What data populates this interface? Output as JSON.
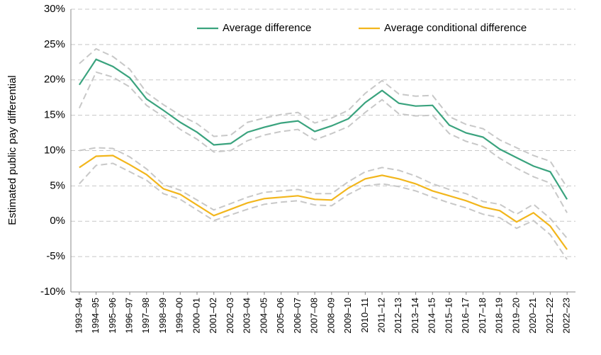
{
  "chart_data": {
    "type": "line",
    "y_label": "Estimated public pay differential",
    "categories": [
      "1993–94",
      "1994–95",
      "1995–96",
      "1996–97",
      "1997–98",
      "1998–99",
      "1999–00",
      "2000–01",
      "2001–02",
      "2002–03",
      "2003–04",
      "2004–05",
      "2005–06",
      "2006–07",
      "2007–08",
      "2008–09",
      "2009–10",
      "2010–11",
      "2011–12",
      "2012–13",
      "2013–14",
      "2014–15",
      "2015–16",
      "2016–17",
      "2017–18",
      "2018–19",
      "2019–20",
      "2020–21",
      "2021–22",
      "2022–23"
    ],
    "series": [
      {
        "name": "Average difference",
        "color": "#3aa37e",
        "values": [
          19.3,
          22.9,
          21.9,
          20.3,
          17.3,
          15.7,
          14.0,
          12.6,
          10.8,
          11.0,
          12.6,
          13.3,
          13.9,
          14.2,
          12.7,
          13.5,
          14.5,
          16.8,
          18.5,
          16.7,
          16.3,
          16.4,
          13.6,
          12.5,
          11.9,
          10.2,
          9.0,
          7.8,
          7.0,
          3.1
        ],
        "upper": [
          22.3,
          24.4,
          23.3,
          21.5,
          18.2,
          16.5,
          15.0,
          13.8,
          12.0,
          12.2,
          14.0,
          14.6,
          15.1,
          15.4,
          13.9,
          14.6,
          15.7,
          18.1,
          19.9,
          18.0,
          17.7,
          17.8,
          14.8,
          13.7,
          13.1,
          11.5,
          10.4,
          9.3,
          8.5,
          4.8
        ],
        "lower": [
          16.0,
          21.1,
          20.4,
          19.0,
          16.4,
          14.8,
          13.0,
          11.6,
          9.8,
          10.0,
          11.4,
          12.2,
          12.7,
          13.0,
          11.5,
          12.4,
          13.4,
          15.4,
          17.2,
          15.2,
          14.9,
          15.0,
          12.4,
          11.3,
          10.6,
          8.9,
          7.5,
          6.3,
          5.4,
          1.2
        ]
      },
      {
        "name": "Average conditional difference",
        "color": "#f2b61c",
        "values": [
          7.6,
          9.2,
          9.3,
          8.0,
          6.6,
          4.6,
          3.8,
          2.3,
          0.8,
          1.7,
          2.6,
          3.2,
          3.4,
          3.6,
          3.1,
          3.0,
          4.7,
          6.0,
          6.5,
          6.0,
          5.3,
          4.3,
          3.6,
          2.9,
          2.0,
          1.5,
          -0.1,
          1.2,
          -0.7,
          -4.0
        ],
        "upper": [
          10.0,
          10.4,
          10.3,
          9.1,
          7.4,
          5.2,
          4.4,
          3.0,
          1.6,
          2.5,
          3.4,
          4.1,
          4.3,
          4.5,
          3.9,
          3.9,
          5.6,
          7.0,
          7.6,
          7.2,
          6.4,
          5.3,
          4.5,
          3.9,
          2.8,
          2.4,
          1.0,
          2.4,
          0.4,
          -2.4
        ],
        "lower": [
          5.3,
          7.9,
          8.2,
          7.0,
          5.8,
          3.9,
          3.1,
          1.6,
          0.1,
          0.9,
          1.7,
          2.4,
          2.7,
          2.9,
          2.3,
          2.2,
          3.8,
          5.0,
          5.3,
          4.9,
          4.3,
          3.4,
          2.6,
          1.9,
          1.0,
          0.5,
          -1.0,
          0.1,
          -1.9,
          -5.4
        ]
      }
    ],
    "band_color": "#c8c8c8",
    "ylim": [
      -10,
      30
    ],
    "yticks": [
      {
        "value": -10,
        "label": "-10%"
      },
      {
        "value": -5,
        "label": "-5%"
      },
      {
        "value": 0,
        "label": "0%"
      },
      {
        "value": 5,
        "label": "5%"
      },
      {
        "value": 10,
        "label": "10%"
      },
      {
        "value": 15,
        "label": "15%"
      },
      {
        "value": 20,
        "label": "20%"
      },
      {
        "value": 25,
        "label": "25%"
      },
      {
        "value": 30,
        "label": "30%"
      }
    ],
    "grid": true,
    "legend": "top"
  }
}
